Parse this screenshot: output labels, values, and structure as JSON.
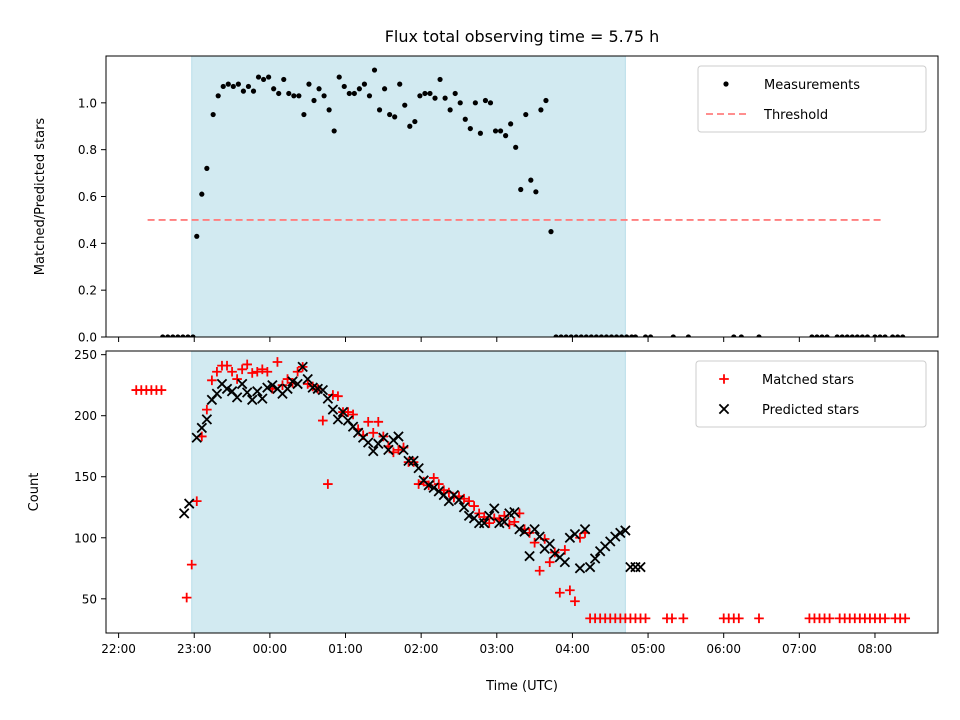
{
  "chart_data": [
    {
      "type": "scatter",
      "title": "Flux total observing time = 5.75 h",
      "xlabel": "",
      "ylabel": "Matched/Predicted stars",
      "xlim": [
        -130,
        530
      ],
      "ylim": [
        0,
        1.2
      ],
      "shaded_interval": [
        -62,
        282
      ],
      "shade_color": "#add8e6",
      "x_tick_labels": [
        "22:00",
        "23:00",
        "00:00",
        "01:00",
        "02:00",
        "03:00",
        "04:00",
        "05:00",
        "06:00",
        "07:00",
        "08:00"
      ],
      "x_tick_values": [
        -120,
        -60,
        0,
        60,
        120,
        180,
        240,
        300,
        360,
        420,
        480
      ],
      "y_tick_labels": [
        "0.0",
        "0.2",
        "0.4",
        "0.6",
        "0.8",
        "1.0"
      ],
      "y_tick_values": [
        0,
        0.2,
        0.4,
        0.6,
        0.8,
        1.0
      ],
      "legend": {
        "position": "upper right",
        "entries": [
          "Measurements",
          "Threshold"
        ]
      },
      "series": [
        {
          "name": "Measurements",
          "color": "#000000",
          "marker": "dot",
          "x": [
            -85,
            -81,
            -77,
            -73,
            -69,
            -65,
            -61,
            -58,
            -54,
            -50,
            -45,
            -41,
            -37,
            -33,
            -29,
            -25,
            -21,
            -17,
            -13,
            -9,
            -5,
            -1,
            3,
            7,
            11,
            15,
            19,
            23,
            27,
            31,
            35,
            39,
            43,
            47,
            51,
            55,
            59,
            63,
            67,
            71,
            75,
            79,
            83,
            87,
            91,
            95,
            99,
            103,
            107,
            111,
            115,
            119,
            123,
            127,
            131,
            135,
            139,
            143,
            147,
            151,
            155,
            159,
            163,
            167,
            171,
            175,
            179,
            183,
            187,
            191,
            195,
            199,
            203,
            207,
            211,
            215,
            219,
            223,
            227,
            231,
            235,
            239,
            243,
            247,
            251,
            255,
            259,
            263,
            267,
            271,
            275,
            279,
            283,
            287,
            290,
            298,
            302,
            320,
            332,
            368,
            374,
            388,
            430,
            434,
            438,
            442,
            450,
            454,
            458,
            462,
            466,
            470,
            474,
            480,
            484,
            488,
            494,
            498,
            502
          ],
          "values": [
            0.0,
            0.0,
            0.0,
            0.0,
            0.0,
            0.0,
            0.0,
            0.43,
            0.61,
            0.72,
            0.95,
            1.03,
            1.07,
            1.08,
            1.07,
            1.08,
            1.05,
            1.07,
            1.05,
            1.11,
            1.1,
            1.11,
            1.06,
            1.04,
            1.1,
            1.04,
            1.03,
            1.03,
            0.95,
            1.08,
            1.01,
            1.06,
            1.03,
            0.97,
            0.88,
            1.11,
            1.07,
            1.04,
            1.04,
            1.06,
            1.08,
            1.03,
            1.14,
            0.97,
            1.06,
            0.95,
            0.94,
            1.08,
            0.99,
            0.9,
            0.92,
            1.03,
            1.04,
            1.04,
            1.02,
            1.1,
            1.02,
            0.97,
            1.04,
            1.0,
            0.93,
            0.89,
            1.0,
            0.87,
            1.01,
            1.0,
            0.88,
            0.88,
            0.86,
            0.91,
            0.81,
            0.63,
            0.95,
            0.67,
            0.62,
            0.97,
            1.01,
            0.45,
            0.0,
            0.0,
            0.0,
            0.0,
            0.0,
            0.0,
            0.0,
            0.0,
            0.0,
            0.0,
            0.0,
            0.0,
            0.0,
            0.0,
            0.0,
            0.0,
            0.0,
            0.0,
            0.0,
            0.0,
            0.0,
            0.0,
            0.0,
            0.0,
            0.0,
            0.0,
            0.0,
            0.0,
            0.0,
            0.0,
            0.0,
            0.0,
            0.0,
            0.0,
            0.0,
            0.0,
            0.0,
            0.0,
            0.0,
            0.0,
            0.0
          ]
        },
        {
          "name": "Threshold",
          "color": "#ff7f7f",
          "marker": "dashed-line",
          "x": [
            -97,
            486
          ],
          "values": [
            0.5,
            0.5
          ]
        }
      ]
    },
    {
      "type": "scatter",
      "title": "",
      "xlabel": "Time (UTC)",
      "ylabel": "Count",
      "xlim": [
        -130,
        530
      ],
      "ylim": [
        22,
        253
      ],
      "shaded_interval": [
        -62,
        282
      ],
      "shade_color": "#add8e6",
      "x_tick_labels": [
        "22:00",
        "23:00",
        "00:00",
        "01:00",
        "02:00",
        "03:00",
        "04:00",
        "05:00",
        "06:00",
        "07:00",
        "08:00"
      ],
      "x_tick_values": [
        -120,
        -60,
        0,
        60,
        120,
        180,
        240,
        300,
        360,
        420,
        480
      ],
      "y_tick_labels": [
        "50",
        "100",
        "150",
        "200",
        "250"
      ],
      "y_tick_values": [
        50,
        100,
        150,
        200,
        250
      ],
      "legend": {
        "position": "upper right",
        "entries": [
          "Matched stars",
          "Predicted stars"
        ]
      },
      "series": [
        {
          "name": "Matched stars",
          "color": "#ff0000",
          "marker": "plus",
          "x": [
            -106,
            -102,
            -98,
            -94,
            -90,
            -86,
            -66,
            -62,
            -58,
            -54,
            -50,
            -46,
            -42,
            -38,
            -34,
            -30,
            -26,
            -22,
            -18,
            -14,
            -10,
            -6,
            -2,
            2,
            6,
            10,
            14,
            18,
            22,
            26,
            30,
            34,
            38,
            42,
            46,
            50,
            54,
            58,
            62,
            66,
            70,
            74,
            78,
            82,
            86,
            90,
            94,
            98,
            102,
            106,
            110,
            114,
            118,
            122,
            126,
            130,
            134,
            138,
            142,
            146,
            150,
            154,
            158,
            162,
            166,
            170,
            174,
            178,
            182,
            186,
            190,
            194,
            198,
            202,
            206,
            210,
            214,
            218,
            222,
            226,
            230,
            234,
            238,
            242,
            246,
            250,
            254,
            258,
            262,
            266,
            270,
            274,
            278,
            282,
            286,
            290,
            294,
            298,
            315,
            319,
            328,
            360,
            364,
            368,
            372,
            388,
            428,
            432,
            436,
            440,
            444,
            452,
            456,
            460,
            464,
            468,
            472,
            476,
            480,
            484,
            488,
            496,
            500,
            504
          ],
          "values": [
            221,
            221,
            221,
            221,
            221,
            221,
            51,
            78,
            130,
            183,
            205,
            229,
            236,
            241,
            241,
            236,
            230,
            238,
            242,
            235,
            236,
            238,
            236,
            222,
            244,
            225,
            230,
            227,
            236,
            240,
            226,
            224,
            222,
            196,
            144,
            217,
            216,
            203,
            203,
            201,
            189,
            184,
            195,
            186,
            195,
            183,
            175,
            170,
            172,
            174,
            162,
            162,
            144,
            146,
            143,
            149,
            144,
            139,
            137,
            133,
            134,
            132,
            130,
            126,
            120,
            117,
            112,
            116,
            115,
            118,
            111,
            113,
            120,
            107,
            104,
            96,
            73,
            99,
            80,
            88,
            55,
            90,
            57,
            48,
            100,
            104,
            34,
            34,
            34,
            34,
            34,
            34,
            34,
            34,
            34,
            34,
            34,
            34,
            34,
            34,
            34,
            34,
            34,
            34,
            34,
            34,
            34,
            34,
            34,
            34,
            34,
            34,
            34,
            34,
            34,
            34,
            34,
            34,
            34,
            34,
            34,
            34,
            34,
            34
          ]
        },
        {
          "name": "Predicted stars",
          "color": "#000000",
          "marker": "x",
          "x": [
            -68,
            -64,
            -58,
            -54,
            -50,
            -46,
            -42,
            -38,
            -34,
            -30,
            -26,
            -22,
            -18,
            -14,
            -10,
            -6,
            -2,
            2,
            6,
            10,
            14,
            18,
            22,
            26,
            30,
            34,
            38,
            42,
            46,
            50,
            54,
            58,
            62,
            66,
            70,
            74,
            78,
            82,
            86,
            90,
            94,
            98,
            102,
            106,
            110,
            114,
            118,
            122,
            126,
            130,
            134,
            138,
            142,
            146,
            150,
            154,
            158,
            162,
            166,
            170,
            174,
            178,
            182,
            186,
            190,
            194,
            198,
            202,
            206,
            210,
            214,
            218,
            222,
            226,
            230,
            234,
            238,
            242,
            246,
            250,
            254,
            258,
            262,
            266,
            270,
            274,
            278,
            282,
            286,
            290,
            294
          ],
          "values": [
            120,
            128,
            182,
            190,
            197,
            213,
            218,
            226,
            222,
            220,
            215,
            226,
            219,
            213,
            220,
            214,
            223,
            225,
            222,
            218,
            222,
            228,
            226,
            240,
            230,
            223,
            222,
            221,
            214,
            205,
            197,
            203,
            196,
            191,
            186,
            182,
            178,
            171,
            177,
            182,
            172,
            180,
            183,
            172,
            163,
            163,
            157,
            147,
            143,
            141,
            138,
            135,
            130,
            135,
            131,
            125,
            118,
            116,
            112,
            112,
            118,
            124,
            112,
            113,
            120,
            121,
            107,
            105,
            85,
            107,
            101,
            91,
            95,
            87,
            84,
            80,
            100,
            103,
            75,
            107,
            76,
            83,
            89,
            93,
            97,
            101,
            104,
            106,
            76,
            76,
            76
          ]
        }
      ]
    }
  ]
}
